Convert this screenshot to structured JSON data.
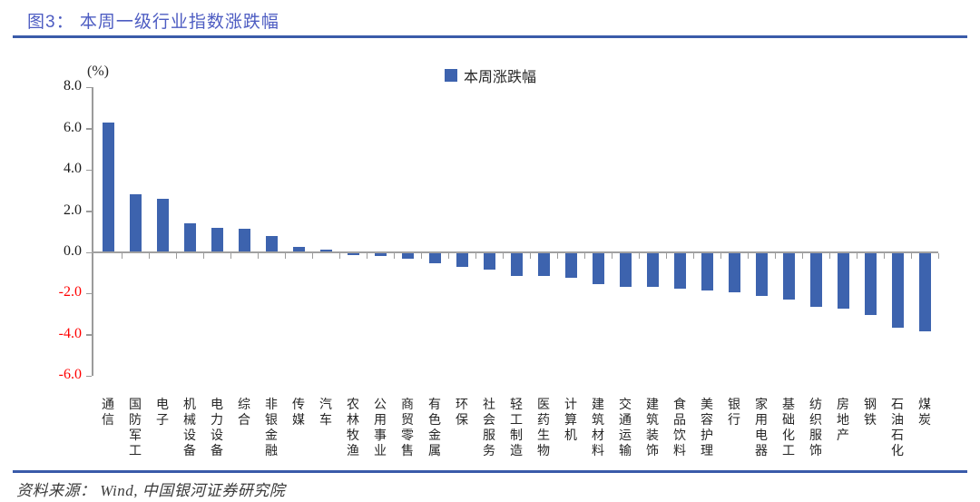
{
  "figure": {
    "title": "图3： 本周一级行业指数涨跌幅",
    "source": "资料来源： Wind, 中国银河证券研究院"
  },
  "chart_data": {
    "type": "bar",
    "title": "图3： 本周一级行业指数涨跌幅",
    "unit_label": "(%)",
    "legend_label": "本周涨跌幅",
    "legend_position": "top-center",
    "grid": false,
    "categories": [
      "通信",
      "国防军工",
      "电子",
      "机械设备",
      "电力设备",
      "综合",
      "非银金融",
      "传媒",
      "汽车",
      "农林牧渔",
      "公用事业",
      "商贸零售",
      "有色金属",
      "环保",
      "社会服务",
      "轻工制造",
      "医药生物",
      "计算机",
      "建筑材料",
      "交通运输",
      "建筑装饰",
      "食品饮料",
      "美容护理",
      "银行",
      "家用电器",
      "基础化工",
      "纺织服饰",
      "房地产",
      "钢铁",
      "石油石化",
      "煤炭"
    ],
    "values": [
      6.3,
      2.8,
      2.6,
      1.4,
      1.2,
      1.15,
      0.8,
      0.25,
      0.15,
      -0.1,
      -0.15,
      -0.25,
      -0.5,
      -0.65,
      -0.8,
      -1.1,
      -1.1,
      -1.2,
      -1.5,
      -1.65,
      -1.65,
      -1.7,
      -1.8,
      -1.9,
      -2.05,
      -2.25,
      -2.6,
      -2.7,
      -3.0,
      -3.6,
      -3.8
    ],
    "ylim": [
      -6.0,
      8.0
    ],
    "yticks": [
      8,
      6,
      4,
      2,
      0,
      -2,
      -4,
      -6
    ],
    "colors": {
      "bar": "#3d63ae",
      "title": "#4d5cc2",
      "rule": "#3a5ba9",
      "axis": "#9b9b9b",
      "positive_tick_label": "#1a1a1a",
      "negative_tick_label": "#ff0000"
    }
  }
}
